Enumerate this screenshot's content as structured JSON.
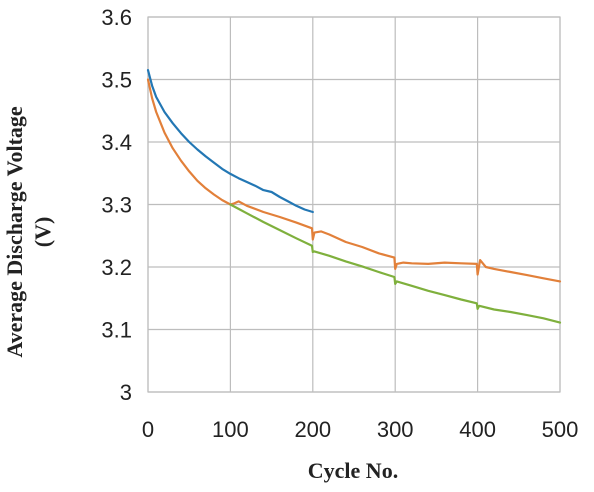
{
  "chart_data": {
    "type": "line",
    "xlabel": "Cycle No.",
    "ylabel": "Average Discharge Voltage (V)",
    "ylabel_lines": [
      "Average Discharge Voltage",
      "(V)"
    ],
    "xlim": [
      0,
      500
    ],
    "ylim": [
      3.0,
      3.6
    ],
    "x_ticks": [
      "0",
      "100",
      "200",
      "300",
      "400",
      "500"
    ],
    "y_ticks": [
      "3",
      "3.1",
      "3.2",
      "3.3",
      "3.4",
      "3.5",
      "3.6"
    ],
    "grid": true,
    "legend": false,
    "series": [
      {
        "color": "#2377b4",
        "x": [
          0,
          5,
          10,
          20,
          30,
          40,
          50,
          60,
          70,
          80,
          90,
          100,
          110,
          120,
          130,
          140,
          150,
          160,
          170,
          180,
          190,
          200
        ],
        "y": [
          3.515,
          3.49,
          3.472,
          3.448,
          3.43,
          3.414,
          3.4,
          3.388,
          3.377,
          3.367,
          3.357,
          3.349,
          3.342,
          3.336,
          3.33,
          3.323,
          3.32,
          3.312,
          3.305,
          3.298,
          3.292,
          3.288
        ]
      },
      {
        "color": "#e2803a",
        "x": [
          0,
          5,
          10,
          20,
          30,
          40,
          50,
          60,
          70,
          80,
          90,
          100,
          105,
          110,
          120,
          140,
          160,
          180,
          199,
          200,
          202,
          210,
          220,
          240,
          260,
          280,
          299,
          300,
          302,
          310,
          320,
          340,
          360,
          380,
          399,
          400,
          403,
          410,
          420,
          440,
          460,
          480,
          500
        ],
        "y": [
          3.5,
          3.47,
          3.448,
          3.415,
          3.39,
          3.37,
          3.353,
          3.338,
          3.326,
          3.316,
          3.307,
          3.3,
          3.302,
          3.305,
          3.298,
          3.288,
          3.28,
          3.271,
          3.262,
          3.244,
          3.255,
          3.257,
          3.252,
          3.24,
          3.232,
          3.222,
          3.215,
          3.197,
          3.205,
          3.207,
          3.206,
          3.205,
          3.207,
          3.206,
          3.205,
          3.188,
          3.211,
          3.2,
          3.197,
          3.192,
          3.187,
          3.182,
          3.177
        ]
      },
      {
        "color": "#7fb03d",
        "x": [
          100,
          110,
          120,
          140,
          160,
          180,
          199,
          200,
          202,
          220,
          240,
          260,
          280,
          299,
          300,
          302,
          320,
          340,
          360,
          380,
          399,
          400,
          402,
          420,
          440,
          460,
          480,
          500
        ],
        "y": [
          3.3,
          3.293,
          3.286,
          3.272,
          3.259,
          3.246,
          3.234,
          3.224,
          3.225,
          3.218,
          3.209,
          3.201,
          3.192,
          3.184,
          3.173,
          3.177,
          3.17,
          3.162,
          3.155,
          3.148,
          3.142,
          3.133,
          3.138,
          3.132,
          3.128,
          3.123,
          3.118,
          3.111
        ]
      }
    ]
  }
}
